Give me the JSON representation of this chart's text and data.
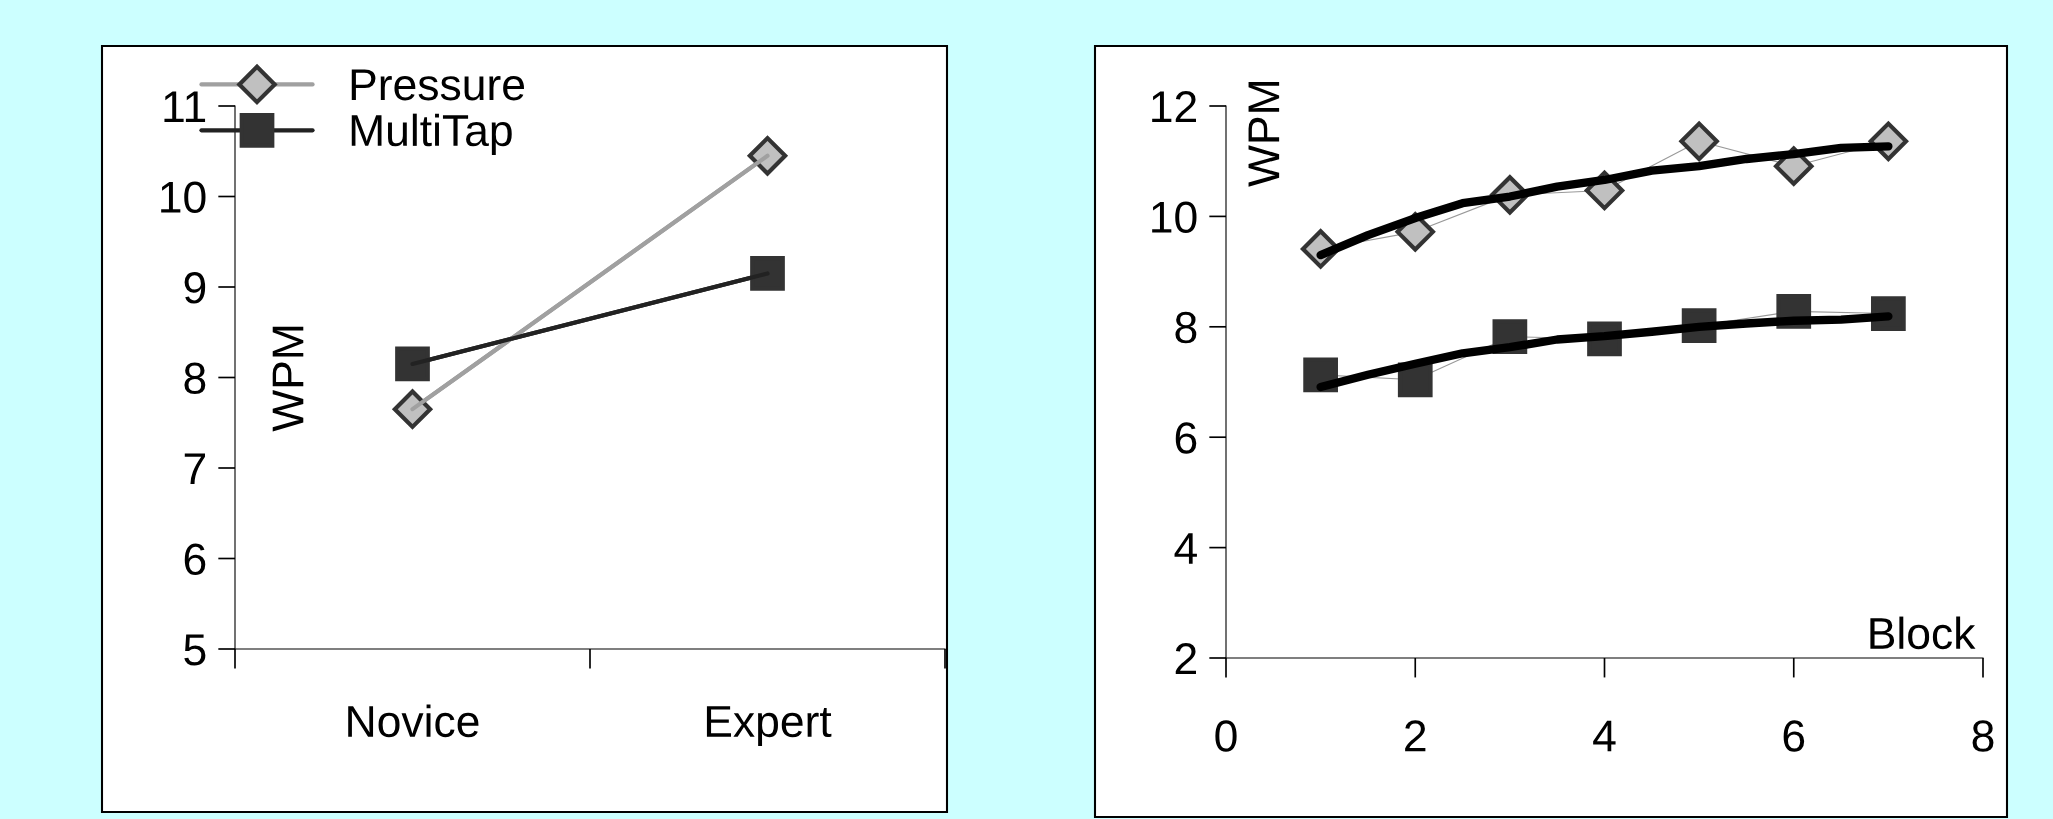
{
  "chart_data": [
    {
      "type": "line",
      "ylabel": "WPM",
      "categories": [
        "Novice",
        "Expert"
      ],
      "ylim": [
        5,
        11
      ],
      "yticks": [
        5,
        6,
        7,
        8,
        9,
        10,
        11
      ],
      "grid": false,
      "legend": "top left",
      "series": [
        {
          "name": "Pressure",
          "color": "#a0a0a0",
          "marker": "diamond",
          "values": [
            7.65,
            10.45
          ]
        },
        {
          "name": "MultiTap",
          "color": "#222222",
          "marker": "square",
          "values": [
            8.15,
            9.15
          ]
        }
      ]
    },
    {
      "type": "line",
      "xlabel": "Block",
      "ylabel": "WPM",
      "xlim": [
        0,
        8
      ],
      "xticks": [
        0,
        2,
        4,
        6,
        8
      ],
      "ylim": [
        2,
        12
      ],
      "yticks": [
        2,
        4,
        6,
        8,
        10,
        12
      ],
      "grid": false,
      "legend": false,
      "series": [
        {
          "color": "#999999",
          "marker": "diamond",
          "x": [
            1,
            2,
            3,
            4,
            5,
            6,
            7
          ],
          "values": [
            9.41,
            9.72,
            10.39,
            10.47,
            11.36,
            10.91,
            11.36
          ]
        },
        {
          "color": "#999999",
          "marker": "square",
          "x": [
            1,
            2,
            3,
            4,
            5,
            6,
            7
          ],
          "values": [
            7.13,
            7.04,
            7.82,
            7.78,
            8.02,
            8.28,
            8.24
          ]
        },
        {
          "color": "#000000",
          "marker": "none",
          "x": [
            1,
            1.5,
            2,
            2.5,
            3,
            3.5,
            4,
            4.5,
            5,
            5.5,
            6,
            6.5,
            7
          ],
          "values": [
            9.3,
            9.66,
            9.97,
            10.24,
            10.36,
            10.54,
            10.66,
            10.83,
            10.91,
            11.04,
            11.13,
            11.24,
            11.27
          ]
        },
        {
          "color": "#000000",
          "marker": "none",
          "x": [
            1,
            1.5,
            2,
            2.5,
            3,
            3.5,
            4,
            4.5,
            5,
            5.5,
            6,
            6.5,
            7
          ],
          "values": [
            6.91,
            7.13,
            7.33,
            7.52,
            7.63,
            7.77,
            7.83,
            7.91,
            8.0,
            8.06,
            8.11,
            8.13,
            8.19
          ]
        }
      ]
    }
  ]
}
